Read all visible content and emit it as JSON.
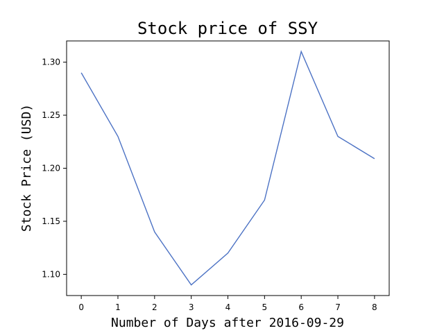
{
  "chart_data": {
    "type": "line",
    "title": "Stock price of SSY",
    "xlabel": "Number of Days after 2016-09-29",
    "ylabel": "Stock Price (USD)",
    "x": [
      0,
      1,
      2,
      3,
      4,
      5,
      6,
      7,
      8
    ],
    "series": [
      {
        "values": [
          1.29,
          1.23,
          1.14,
          1.09,
          1.12,
          1.17,
          1.31,
          1.23,
          1.209
        ],
        "color": "#4c72c4"
      }
    ],
    "xlim": [
      -0.4,
      8.4
    ],
    "ylim": [
      1.08,
      1.32
    ],
    "xticks": [
      0,
      1,
      2,
      3,
      4,
      5,
      6,
      7,
      8
    ],
    "yticks": [
      1.1,
      1.15,
      1.2,
      1.25,
      1.3
    ],
    "ytick_labels": [
      "1.10",
      "1.15",
      "1.20",
      "1.25",
      "1.30"
    ],
    "grid": false,
    "legend": "none"
  }
}
